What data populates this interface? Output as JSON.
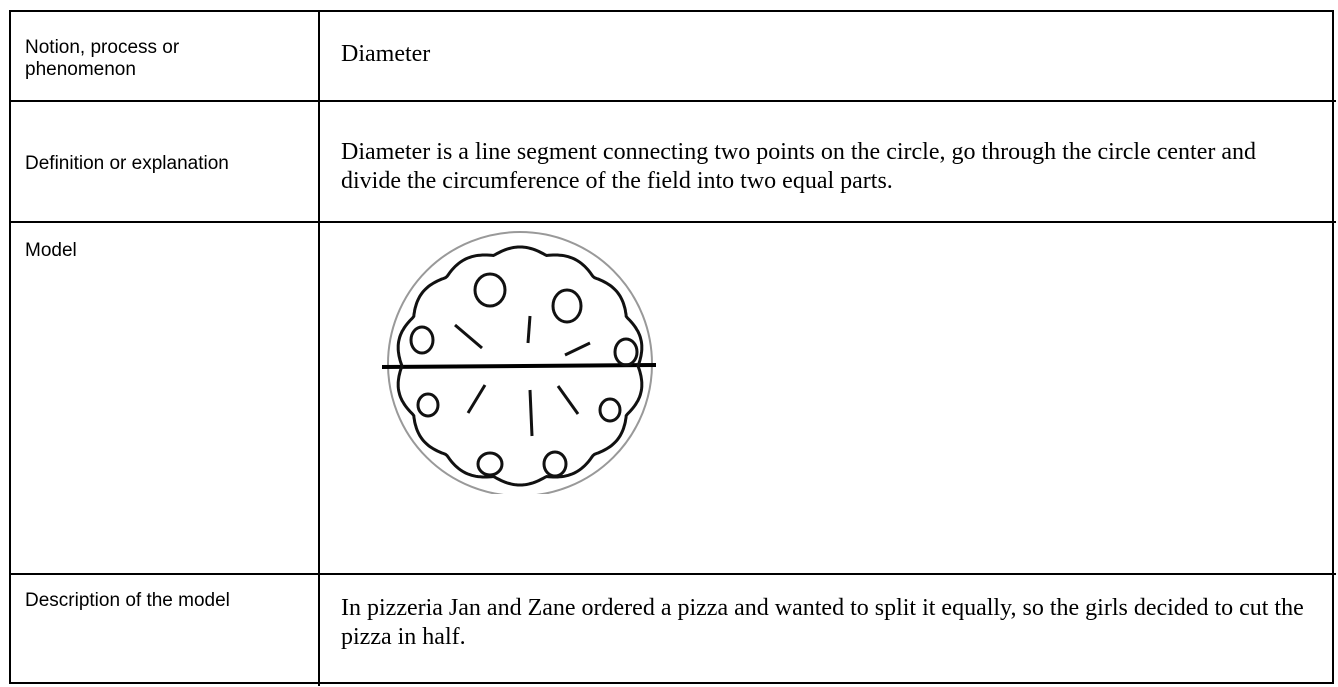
{
  "table": {
    "rows": [
      {
        "label": "Notion, process or phenomenon",
        "content": "Diameter"
      },
      {
        "label": "Definition or explanation",
        "content": "Diameter is a line segment connecting two points on the circle, go through the circle center and divide the circumference of the field into two equal parts."
      },
      {
        "label": "Model"
      },
      {
        "label": "Description of the model",
        "content": "In pizzeria Jan and Zane ordered a pizza and wanted to split it equally, so the girls decided to cut the pizza in half."
      }
    ]
  }
}
